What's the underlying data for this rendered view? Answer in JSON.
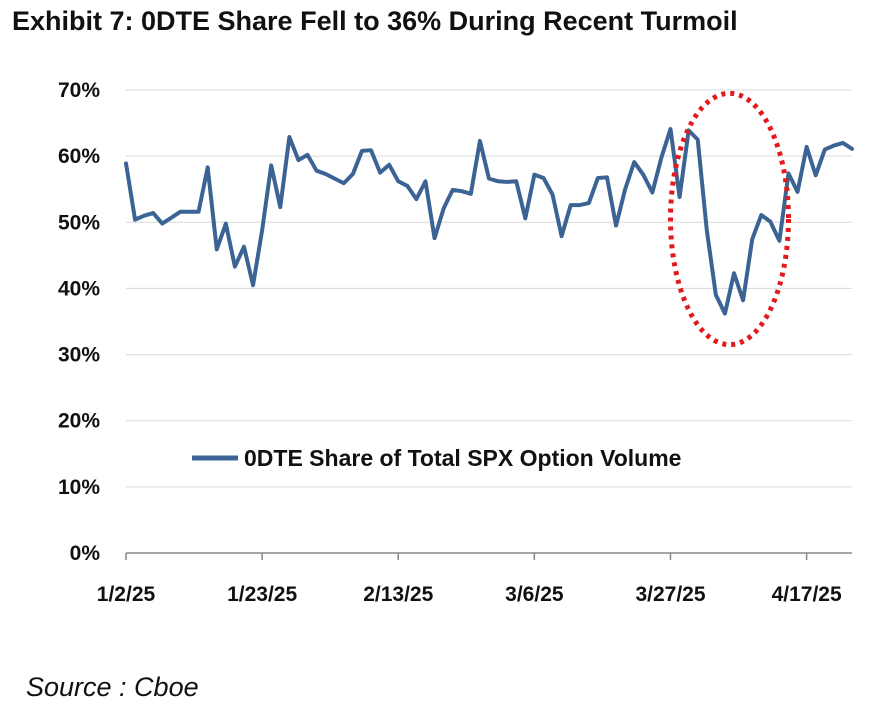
{
  "title": "Exhibit 7: 0DTE Share Fell to 36% During Recent Turmoil",
  "source": "Source : Cboe",
  "colors": {
    "series": "#3b6494",
    "highlight": "#e31a1c",
    "grid": "#d9d9d9"
  },
  "chart_data": {
    "type": "line",
    "title": "Exhibit 7: 0DTE Share Fell to 36% During Recent Turmoil",
    "xlabel": "",
    "ylabel": "",
    "ylim": [
      0,
      70
    ],
    "y_ticks": [
      "0%",
      "10%",
      "20%",
      "30%",
      "40%",
      "50%",
      "60%",
      "70%"
    ],
    "x_ticks": [
      "1/2/25",
      "1/23/25",
      "2/13/25",
      "3/6/25",
      "3/27/25",
      "4/17/25"
    ],
    "grid": "horizontal",
    "legend": "center",
    "series": [
      {
        "name": "0DTE Share of Total SPX Option Volume",
        "values": [
          58.9,
          50.4,
          51.0,
          51.4,
          49.8,
          50.7,
          51.6,
          51.6,
          51.6,
          58.3,
          45.9,
          49.8,
          43.3,
          46.3,
          40.5,
          48.8,
          58.6,
          52.3,
          62.9,
          59.4,
          60.2,
          57.8,
          57.3,
          56.6,
          55.9,
          57.3,
          60.8,
          60.9,
          57.5,
          58.7,
          56.2,
          55.5,
          53.5,
          56.2,
          47.6,
          52.1,
          54.9,
          54.7,
          54.3,
          62.3,
          56.6,
          56.2,
          56.1,
          56.2,
          50.6,
          57.2,
          56.7,
          54.2,
          47.9,
          52.6,
          52.6,
          52.9,
          56.7,
          56.8,
          49.5,
          55.0,
          59.1,
          57.2,
          54.5,
          59.8,
          64.1,
          53.8,
          63.9,
          62.5,
          48.8,
          39.0,
          36.2,
          42.3,
          38.2,
          47.4,
          51.1,
          50.1,
          47.2,
          57.4,
          54.6,
          61.4,
          57.1,
          61.0,
          61.6,
          62.0,
          61.1
        ],
        "x_tick_indices": [
          0,
          15,
          30,
          45,
          60,
          75
        ]
      }
    ],
    "annotations": [
      {
        "type": "dotted-ellipse",
        "label": "",
        "x_index_center": 66.5,
        "y_center": 50.5,
        "x_index_radius": 6.5,
        "y_radius": 19.0
      }
    ]
  }
}
